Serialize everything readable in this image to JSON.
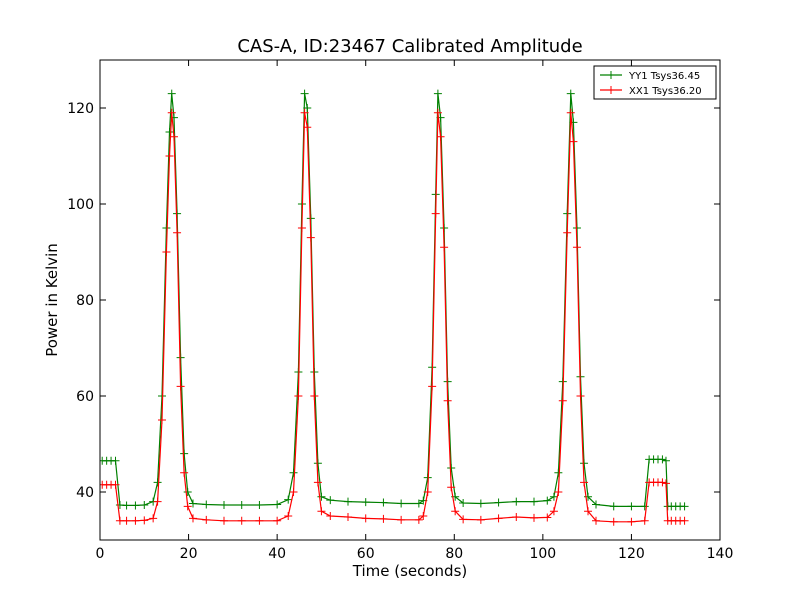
{
  "chart_data": {
    "type": "line",
    "title": "CAS-A, ID:23467 Calibrated Amplitude",
    "xlabel": "Time (seconds)",
    "ylabel": "Power in Kelvin",
    "xlim": [
      0,
      140
    ],
    "ylim": [
      30,
      130
    ],
    "xticks": [
      0,
      20,
      40,
      60,
      80,
      100,
      120,
      140
    ],
    "yticks": [
      40,
      60,
      80,
      100,
      120
    ],
    "grid": false,
    "legend_position": "top-right",
    "marker": "plus",
    "series": [
      {
        "name": "YY1 Tsys36.45",
        "color": "#008000",
        "points": [
          [
            0.5,
            46.5
          ],
          [
            1.5,
            46.5
          ],
          [
            2.5,
            46.5
          ],
          [
            3.5,
            46.5
          ],
          [
            4.5,
            37.3
          ],
          [
            6,
            37.2
          ],
          [
            8,
            37.2
          ],
          [
            10,
            37.3
          ],
          [
            12,
            38.0
          ],
          [
            13,
            42
          ],
          [
            14,
            60
          ],
          [
            15,
            95
          ],
          [
            15.7,
            115
          ],
          [
            16.2,
            123
          ],
          [
            16.7,
            118
          ],
          [
            17.4,
            98
          ],
          [
            18.2,
            68
          ],
          [
            19,
            48
          ],
          [
            19.8,
            40
          ],
          [
            21,
            37.6
          ],
          [
            24,
            37.4
          ],
          [
            28,
            37.3
          ],
          [
            32,
            37.3
          ],
          [
            36,
            37.3
          ],
          [
            40,
            37.4
          ],
          [
            42.5,
            38.4
          ],
          [
            43.7,
            44
          ],
          [
            44.8,
            65
          ],
          [
            45.6,
            100
          ],
          [
            46.2,
            123
          ],
          [
            46.8,
            120
          ],
          [
            47.6,
            97
          ],
          [
            48.4,
            65
          ],
          [
            49.2,
            46
          ],
          [
            50,
            39
          ],
          [
            52,
            38.3
          ],
          [
            56,
            38.0
          ],
          [
            60,
            37.9
          ],
          [
            64,
            37.8
          ],
          [
            68,
            37.6
          ],
          [
            72,
            37.6
          ],
          [
            73,
            38.2
          ],
          [
            74,
            43
          ],
          [
            75,
            66
          ],
          [
            75.8,
            102
          ],
          [
            76.3,
            123
          ],
          [
            76.9,
            118
          ],
          [
            77.7,
            95
          ],
          [
            78.5,
            63
          ],
          [
            79.3,
            45
          ],
          [
            80.2,
            39
          ],
          [
            82,
            37.7
          ],
          [
            86,
            37.6
          ],
          [
            90,
            37.8
          ],
          [
            94,
            38.0
          ],
          [
            98,
            38.0
          ],
          [
            101,
            38.2
          ],
          [
            102.5,
            39
          ],
          [
            103.5,
            44
          ],
          [
            104.5,
            63
          ],
          [
            105.5,
            98
          ],
          [
            106.3,
            123
          ],
          [
            106.9,
            117
          ],
          [
            107.7,
            95
          ],
          [
            108.5,
            64
          ],
          [
            109.3,
            46
          ],
          [
            110.2,
            39
          ],
          [
            112,
            37.4
          ],
          [
            116,
            37.0
          ],
          [
            120,
            37.0
          ],
          [
            123,
            37.0
          ],
          [
            124,
            46.8
          ],
          [
            125,
            46.8
          ],
          [
            126,
            46.8
          ],
          [
            127,
            46.8
          ],
          [
            127.8,
            46.5
          ],
          [
            128.2,
            37.0
          ],
          [
            129,
            37.0
          ],
          [
            130,
            37.0
          ],
          [
            131,
            37.0
          ],
          [
            132,
            37.0
          ]
        ]
      },
      {
        "name": "XX1 Tsys36.20",
        "color": "#ff0000",
        "points": [
          [
            0.5,
            41.5
          ],
          [
            1.5,
            41.5
          ],
          [
            2.5,
            41.5
          ],
          [
            3.5,
            41.5
          ],
          [
            4.5,
            34.0
          ],
          [
            6,
            34.0
          ],
          [
            8,
            34.0
          ],
          [
            10,
            34.1
          ],
          [
            12,
            34.5
          ],
          [
            13,
            38
          ],
          [
            14,
            55
          ],
          [
            15,
            90
          ],
          [
            15.7,
            110
          ],
          [
            16.2,
            119
          ],
          [
            16.7,
            114
          ],
          [
            17.4,
            94
          ],
          [
            18.2,
            62
          ],
          [
            19,
            44
          ],
          [
            19.8,
            37
          ],
          [
            21,
            34.5
          ],
          [
            24,
            34.2
          ],
          [
            28,
            34.0
          ],
          [
            32,
            34.0
          ],
          [
            36,
            34.0
          ],
          [
            40,
            34.0
          ],
          [
            42.5,
            35.0
          ],
          [
            43.7,
            40
          ],
          [
            44.8,
            60
          ],
          [
            45.6,
            95
          ],
          [
            46.2,
            119
          ],
          [
            46.8,
            116
          ],
          [
            47.6,
            93
          ],
          [
            48.4,
            60
          ],
          [
            49.2,
            42
          ],
          [
            50,
            36
          ],
          [
            52,
            35.0
          ],
          [
            56,
            34.8
          ],
          [
            60,
            34.5
          ],
          [
            64,
            34.4
          ],
          [
            68,
            34.2
          ],
          [
            72,
            34.2
          ],
          [
            73,
            35
          ],
          [
            74,
            40
          ],
          [
            75,
            62
          ],
          [
            75.8,
            98
          ],
          [
            76.3,
            119
          ],
          [
            76.9,
            114
          ],
          [
            77.7,
            91
          ],
          [
            78.5,
            59
          ],
          [
            79.3,
            41
          ],
          [
            80.2,
            36
          ],
          [
            82,
            34.3
          ],
          [
            86,
            34.2
          ],
          [
            90,
            34.5
          ],
          [
            94,
            34.8
          ],
          [
            98,
            34.6
          ],
          [
            101,
            34.7
          ],
          [
            102.5,
            36
          ],
          [
            103.5,
            40
          ],
          [
            104.5,
            59
          ],
          [
            105.5,
            94
          ],
          [
            106.3,
            119
          ],
          [
            106.9,
            113
          ],
          [
            107.7,
            91
          ],
          [
            108.5,
            60
          ],
          [
            109.3,
            42
          ],
          [
            110.2,
            36
          ],
          [
            112,
            34.0
          ],
          [
            116,
            33.8
          ],
          [
            120,
            33.8
          ],
          [
            123,
            34.0
          ],
          [
            124,
            42.0
          ],
          [
            125,
            42.0
          ],
          [
            126,
            42.0
          ],
          [
            127,
            42.0
          ],
          [
            127.8,
            41.8
          ],
          [
            128.2,
            34.0
          ],
          [
            129,
            34.0
          ],
          [
            130,
            34.0
          ],
          [
            131,
            34.0
          ],
          [
            132,
            34.0
          ]
        ]
      }
    ]
  }
}
